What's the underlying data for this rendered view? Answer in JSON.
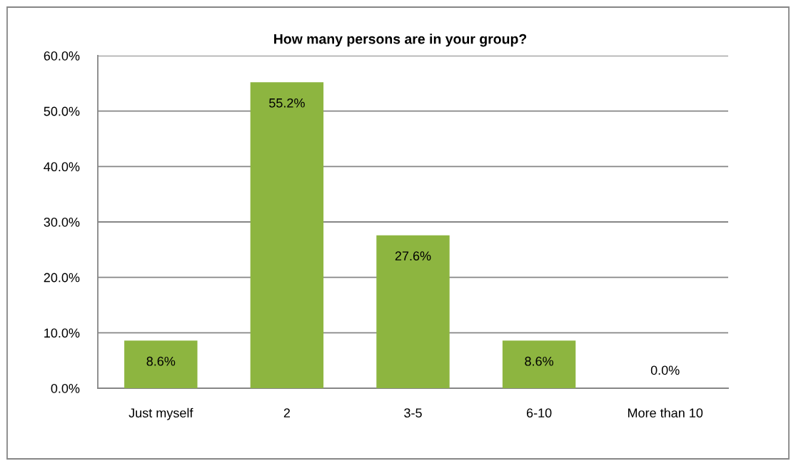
{
  "chart_data": {
    "type": "bar",
    "title": "How many persons are in your group?",
    "categories": [
      "Just myself",
      "2",
      "3-5",
      "6-10",
      "More than 10"
    ],
    "values": [
      8.6,
      55.2,
      27.6,
      8.6,
      0.0
    ],
    "value_labels": [
      "8.6%",
      "55.2%",
      "27.6%",
      "8.6%",
      "0.0%"
    ],
    "color": "#8db540",
    "ylim": [
      0,
      60
    ],
    "yticks": [
      {
        "value": 0,
        "label": "0.0%"
      },
      {
        "value": 10,
        "label": "10.0%"
      },
      {
        "value": 20,
        "label": "20.0%"
      },
      {
        "value": 30,
        "label": "30.0%"
      },
      {
        "value": 40,
        "label": "40.0%"
      },
      {
        "value": 50,
        "label": "50.0%"
      },
      {
        "value": 60,
        "label": "60.0%"
      }
    ],
    "grid": "y"
  }
}
